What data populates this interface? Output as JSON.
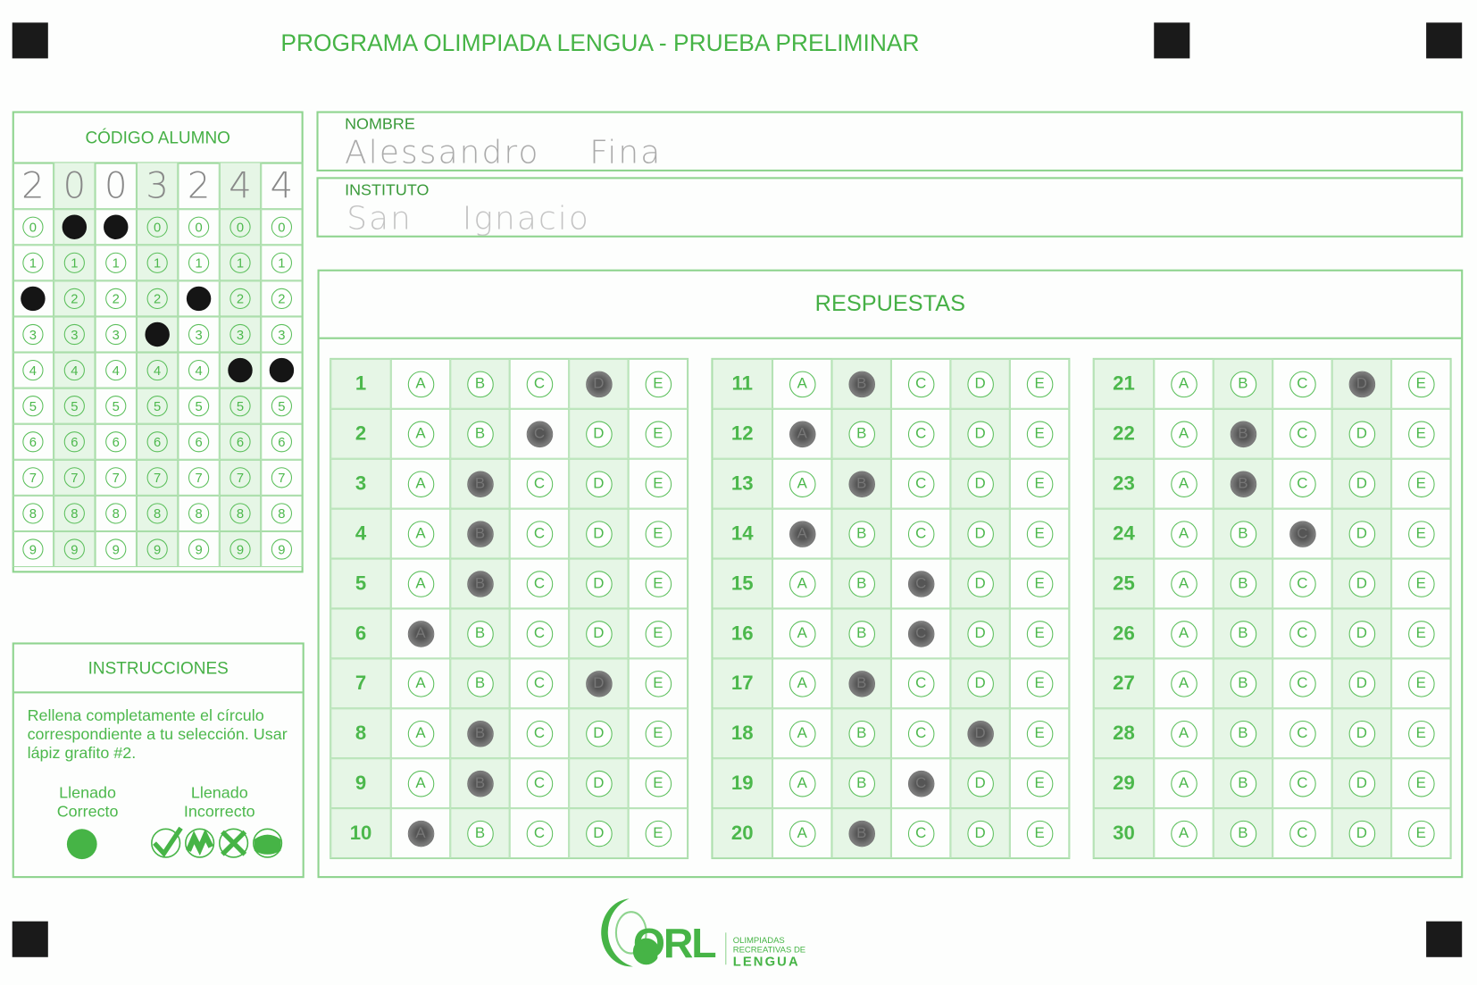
{
  "title": "PROGRAMA OLIMPIADA LENGUA  - PRUEBA PRELIMINAR",
  "student_code": {
    "label": "CÓDIGO ALUMNO",
    "handwritten": [
      "2",
      "0",
      "0",
      "3",
      "2",
      "4",
      "4"
    ],
    "filled_digits": [
      2,
      0,
      0,
      3,
      2,
      4,
      4
    ],
    "digits": [
      "0",
      "1",
      "2",
      "3",
      "4",
      "5",
      "6",
      "7",
      "8",
      "9"
    ]
  },
  "nombre": {
    "label": "NOMBRE",
    "value": "Alessandro Fina"
  },
  "instituto": {
    "label": "INSTITUTO",
    "value": "San Ignacio"
  },
  "instructions": {
    "label": "INSTRUCCIONES",
    "text": "Rellena completamente el círculo correspondiente a tu selección. Usar lápiz grafito #2.",
    "correct": "Llenado Correcto",
    "incorrect": "Llenado Incorrecto"
  },
  "answers": {
    "label": "RESPUESTAS",
    "options": [
      "A",
      "B",
      "C",
      "D",
      "E"
    ],
    "marked": {
      "1": "D",
      "2": "C",
      "3": "B",
      "4": "B",
      "5": "B",
      "6": "A",
      "7": "D",
      "8": "B",
      "9": "B",
      "10": "A",
      "11": "B",
      "12": "A",
      "13": "B",
      "14": "A",
      "15": "C",
      "16": "C",
      "17": "B",
      "18": "D",
      "19": "C",
      "20": "B",
      "21": "D",
      "22": "B",
      "23": "B",
      "24": "C"
    }
  },
  "logo": {
    "mark": "ORL",
    "line1": "OLIMPIADAS",
    "line2": "RECREATIVAS DE",
    "line3": "LENGUA"
  },
  "colors": {
    "green": "#4cb84c",
    "fill": "#151515"
  }
}
